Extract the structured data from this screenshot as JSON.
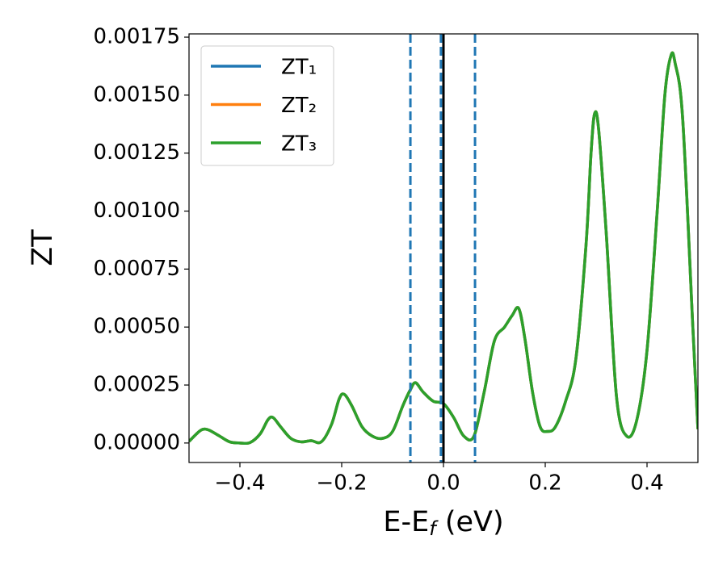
{
  "chart_data": {
    "type": "line",
    "xlabel": [
      "E-E",
      "f",
      " (eV)"
    ],
    "ylabel": "ZT",
    "x": [
      -0.5,
      -0.48,
      -0.47,
      -0.46,
      -0.44,
      -0.42,
      -0.4,
      -0.38,
      -0.36,
      -0.345,
      -0.335,
      -0.32,
      -0.3,
      -0.28,
      -0.26,
      -0.24,
      -0.22,
      -0.205,
      -0.195,
      -0.18,
      -0.16,
      -0.14,
      -0.12,
      -0.1,
      -0.08,
      -0.065,
      -0.055,
      -0.04,
      -0.02,
      0.0,
      0.02,
      0.04,
      0.06,
      0.08,
      0.1,
      0.12,
      0.135,
      0.148,
      0.16,
      0.175,
      0.19,
      0.205,
      0.22,
      0.24,
      0.26,
      0.28,
      0.29,
      0.297,
      0.305,
      0.32,
      0.34,
      0.36,
      0.38,
      0.4,
      0.42,
      0.435,
      0.447,
      0.455,
      0.47,
      0.49,
      0.5
    ],
    "series": [
      {
        "name": "ZT₁",
        "color": "#1f77b4",
        "values": [
          7e-06,
          5e-05,
          6e-05,
          5.5e-05,
          3e-05,
          5e-06,
          0.0,
          2e-06,
          4e-05,
          0.0001,
          0.00011,
          7e-05,
          2e-05,
          5e-06,
          1e-05,
          5e-06,
          8e-05,
          0.00019,
          0.00021,
          0.00016,
          7e-05,
          3e-05,
          2e-05,
          5e-05,
          0.00016,
          0.00023,
          0.00026,
          0.00022,
          0.00018,
          0.00017,
          0.00011,
          3e-05,
          3e-05,
          0.00022,
          0.00044,
          0.0005,
          0.00055,
          0.00058,
          0.00045,
          0.00022,
          7e-05,
          5e-05,
          7e-05,
          0.00018,
          0.00036,
          0.00085,
          0.00125,
          0.00142,
          0.00135,
          0.0009,
          0.0002,
          3e-05,
          0.0001,
          0.0004,
          0.001,
          0.0015,
          0.00167,
          0.00164,
          0.0014,
          0.0005,
          6e-05
        ]
      },
      {
        "name": "ZT₂",
        "color": "#ff7f0e",
        "values": [
          7e-06,
          5e-05,
          6e-05,
          5.5e-05,
          3e-05,
          5e-06,
          0.0,
          2e-06,
          4e-05,
          0.0001,
          0.00011,
          7e-05,
          2e-05,
          5e-06,
          1e-05,
          5e-06,
          8e-05,
          0.00019,
          0.00021,
          0.00016,
          7e-05,
          3e-05,
          2e-05,
          5e-05,
          0.00016,
          0.00023,
          0.00026,
          0.00022,
          0.00018,
          0.00017,
          0.00011,
          3e-05,
          3e-05,
          0.00022,
          0.00044,
          0.0005,
          0.00055,
          0.00058,
          0.00045,
          0.00022,
          7e-05,
          5e-05,
          7e-05,
          0.00018,
          0.00036,
          0.00085,
          0.00125,
          0.00142,
          0.00135,
          0.0009,
          0.0002,
          3e-05,
          0.0001,
          0.0004,
          0.001,
          0.0015,
          0.00167,
          0.00164,
          0.0014,
          0.0005,
          6e-05
        ]
      },
      {
        "name": "ZT₃",
        "color": "#2ca02c",
        "values": [
          7e-06,
          5e-05,
          6e-05,
          5.5e-05,
          3e-05,
          5e-06,
          0.0,
          2e-06,
          4e-05,
          0.0001,
          0.00011,
          7e-05,
          2e-05,
          5e-06,
          1e-05,
          5e-06,
          8e-05,
          0.00019,
          0.00021,
          0.00016,
          7e-05,
          3e-05,
          2e-05,
          5e-05,
          0.00016,
          0.00023,
          0.00026,
          0.00022,
          0.00018,
          0.00017,
          0.00011,
          3e-05,
          3e-05,
          0.00022,
          0.00044,
          0.0005,
          0.00055,
          0.00058,
          0.00045,
          0.00022,
          7e-05,
          5e-05,
          7e-05,
          0.00018,
          0.00036,
          0.00085,
          0.00125,
          0.00142,
          0.00135,
          0.0009,
          0.0002,
          3e-05,
          0.0001,
          0.0004,
          0.001,
          0.0015,
          0.00167,
          0.00164,
          0.0014,
          0.0005,
          6e-05
        ]
      }
    ],
    "vlines": [
      {
        "x": -0.065,
        "color": "#1f77b4",
        "style": "dashed"
      },
      {
        "x": -0.005,
        "color": "#1f77b4",
        "style": "dashed"
      },
      {
        "x": 0.0,
        "color": "#000000",
        "style": "solid"
      },
      {
        "x": 0.062,
        "color": "#1f77b4",
        "style": "dashed"
      }
    ],
    "xlim": [
      -0.5,
      0.5
    ],
    "xticks": [
      {
        "value": -0.4,
        "label": "−0.4"
      },
      {
        "value": -0.2,
        "label": "−0.2"
      },
      {
        "value": 0.0,
        "label": "0.0"
      },
      0.2,
      0.4
    ],
    "ylim": [
      -8.4e-05,
      0.001764
    ],
    "yticks": [
      {
        "value": 0,
        "label": "0.00000"
      },
      0.00025,
      {
        "value": 0.0005,
        "label": "0.00050"
      },
      0.00075,
      {
        "value": 0.001,
        "label": "0.00100"
      },
      0.00125,
      {
        "value": 0.0015,
        "label": "0.00150"
      },
      0.00175
    ],
    "legend": "upper left",
    "grid": false
  }
}
